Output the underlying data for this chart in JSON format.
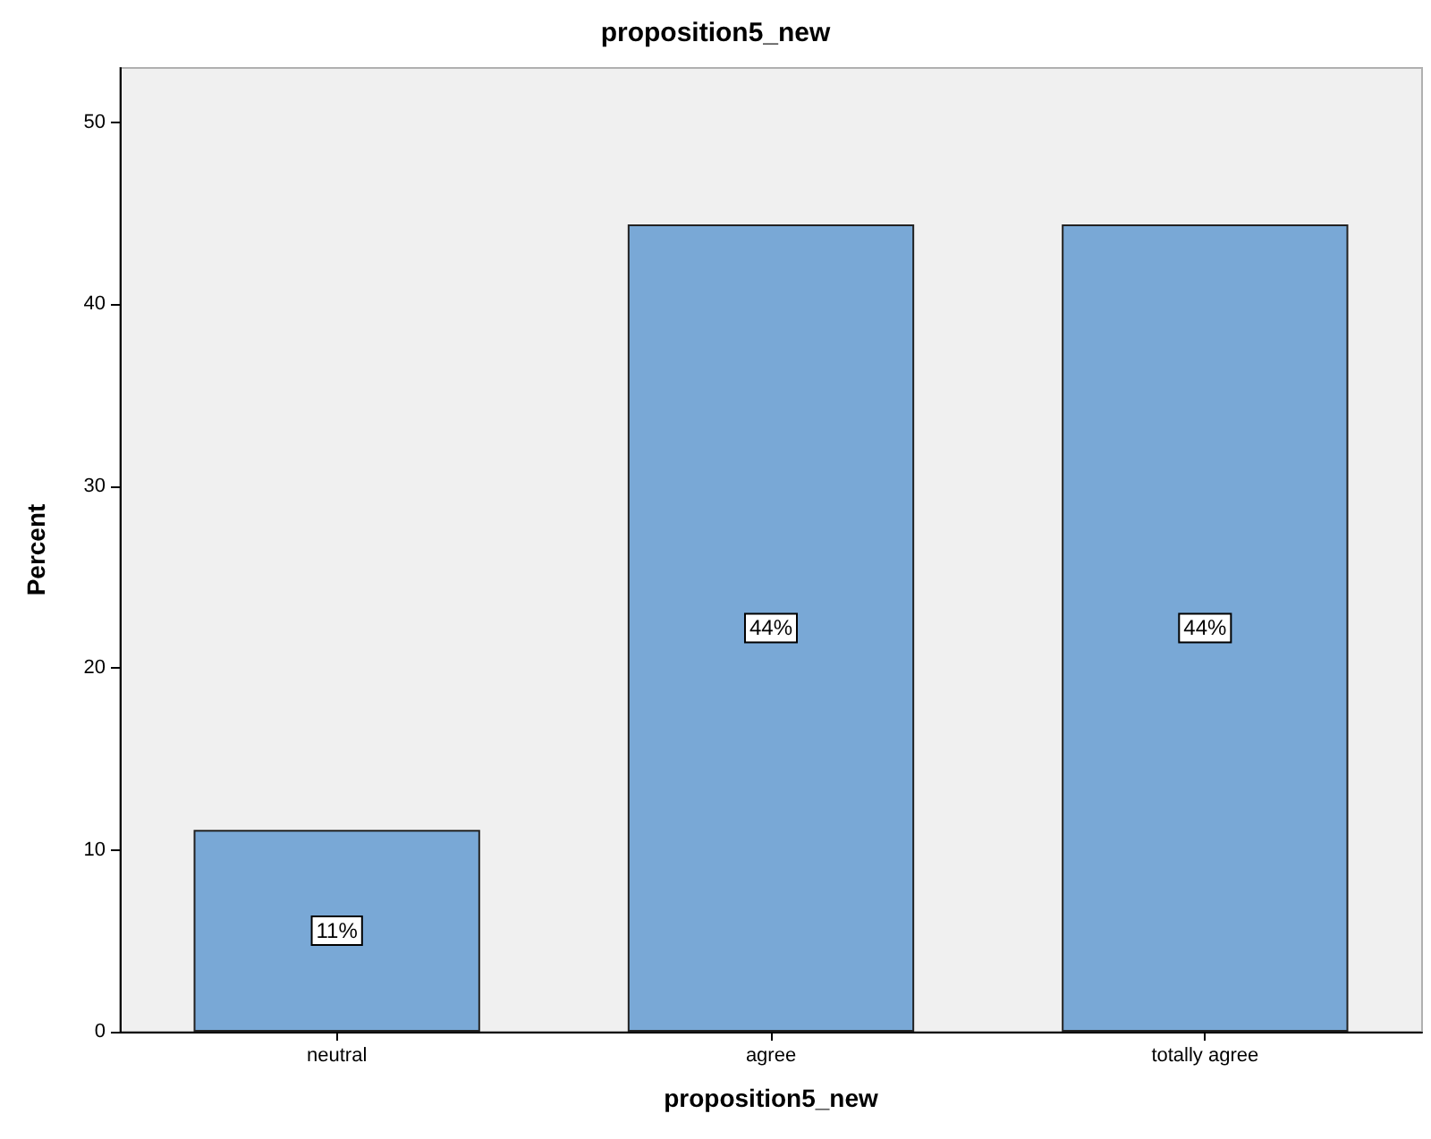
{
  "chart_data": {
    "type": "bar",
    "title": "proposition5_new",
    "xlabel": "proposition5_new",
    "ylabel": "Percent",
    "categories": [
      "neutral",
      "agree",
      "totally agree"
    ],
    "values": [
      11.1,
      44.4,
      44.4
    ],
    "value_labels": [
      "11%",
      "44%",
      "44%"
    ],
    "color": "#79a8d6",
    "ylim": [
      0,
      53
    ],
    "yticks": [
      0,
      10,
      20,
      30,
      40,
      50
    ],
    "grid": false
  }
}
